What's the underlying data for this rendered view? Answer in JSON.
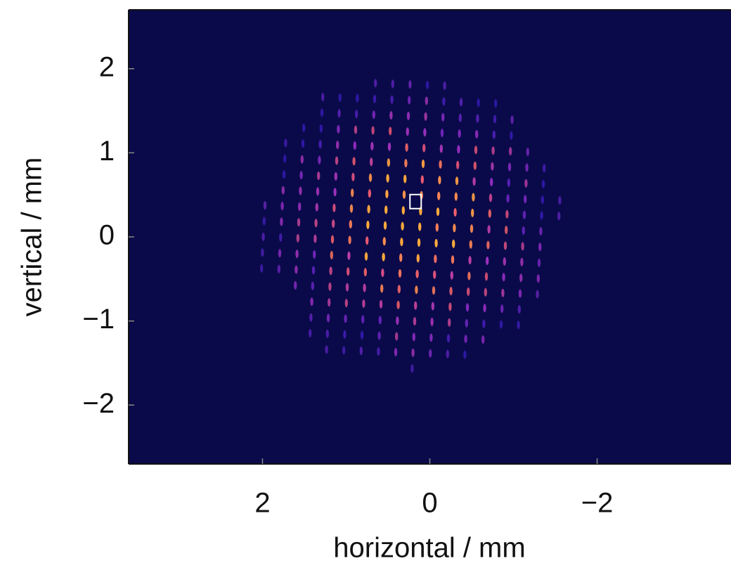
{
  "chart_data": {
    "type": "image",
    "xlabel": "horizontal / mm",
    "ylabel": "vertical / mm",
    "xlim": [
      3.6,
      -3.6
    ],
    "ylim": [
      -2.7,
      2.7
    ],
    "xticks": [
      2,
      0,
      {
        "value": -2,
        "label": "−2"
      }
    ],
    "yticks": [
      {
        "value": -2,
        "label": "−2"
      },
      {
        "value": -1,
        "label": "−1"
      },
      0,
      1,
      2
    ],
    "background": "#0a0a4a",
    "marker_color": "#ffffff",
    "marker": {
      "x": 0.17,
      "y": 0.42
    }
  }
}
